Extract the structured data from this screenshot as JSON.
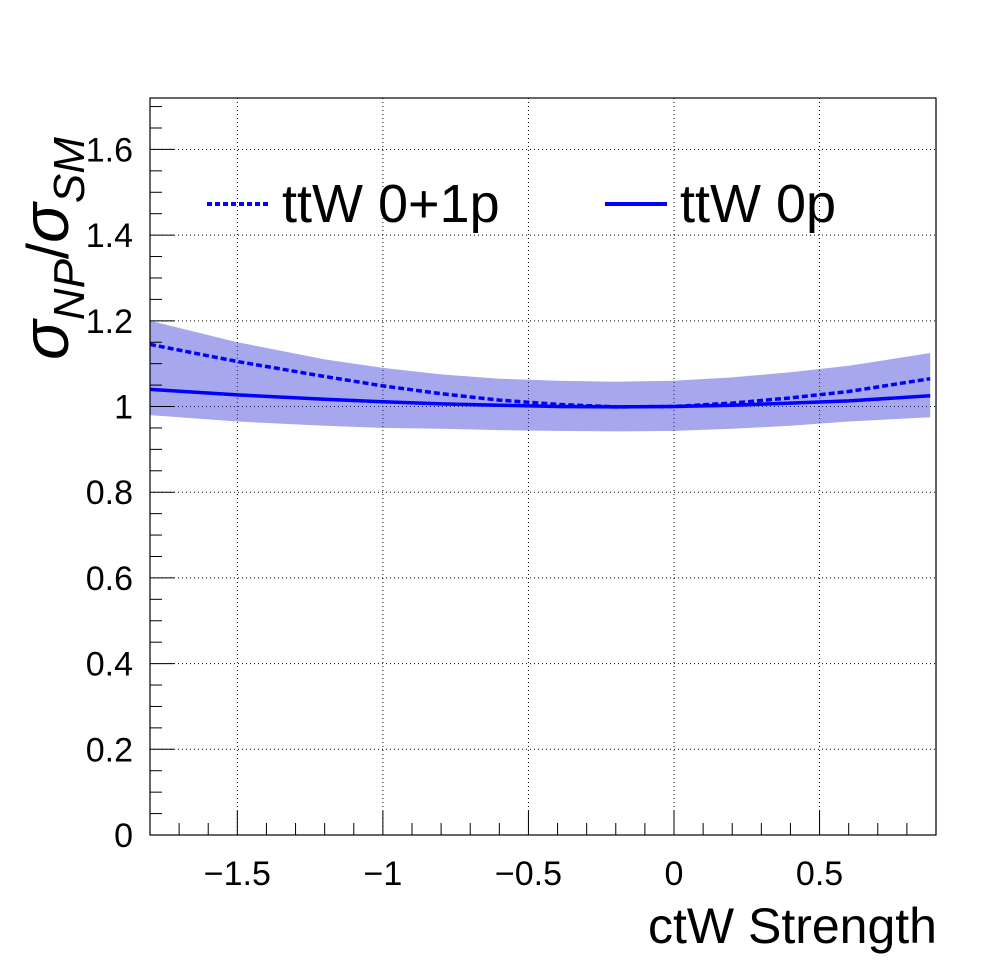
{
  "chart_data": {
    "type": "line",
    "title": "",
    "xlabel": "ctW Strength",
    "ylabel": {
      "base": "σ",
      "numerator_sub": "NP",
      "slash": "/",
      "denominator_base": "σ",
      "denominator_sub": "SM"
    },
    "xlim": [
      -1.8,
      0.9
    ],
    "ylim": [
      0,
      1.72
    ],
    "xticks": [
      {
        "value": -1.5,
        "label": "−1.5"
      },
      {
        "value": -1.0,
        "label": "−1"
      },
      {
        "value": -0.5,
        "label": "−0.5"
      },
      {
        "value": 0.0,
        "label": "0"
      },
      {
        "value": 0.5,
        "label": "0.5"
      }
    ],
    "yticks": [
      {
        "value": 0.0,
        "label": "0"
      },
      {
        "value": 0.2,
        "label": "0.2"
      },
      {
        "value": 0.4,
        "label": "0.4"
      },
      {
        "value": 0.6,
        "label": "0.6"
      },
      {
        "value": 0.8,
        "label": "0.8"
      },
      {
        "value": 1.0,
        "label": "1"
      },
      {
        "value": 1.2,
        "label": "1.2"
      },
      {
        "value": 1.4,
        "label": "1.4"
      },
      {
        "value": 1.6,
        "label": "1.6"
      }
    ],
    "grid": true,
    "legend_position": "top",
    "series": [
      {
        "name": "ttW 0+1p",
        "style": "dashed",
        "color": "#0000ff",
        "x": [
          -1.8,
          -1.5,
          -1.2,
          -1.0,
          -0.8,
          -0.6,
          -0.4,
          -0.2,
          0.0,
          0.2,
          0.4,
          0.6,
          0.88
        ],
        "y": [
          1.145,
          1.105,
          1.07,
          1.048,
          1.03,
          1.015,
          1.005,
          0.999,
          1.0,
          1.008,
          1.02,
          1.035,
          1.065
        ]
      },
      {
        "name": "ttW 0p",
        "style": "solid",
        "color": "#0000ff",
        "x": [
          -1.8,
          -1.5,
          -1.2,
          -1.0,
          -0.8,
          -0.6,
          -0.4,
          -0.2,
          0.0,
          0.2,
          0.4,
          0.6,
          0.88
        ],
        "y": [
          1.04,
          1.027,
          1.017,
          1.011,
          1.006,
          1.003,
          1.0,
          0.999,
          1.0,
          1.003,
          1.008,
          1.013,
          1.025
        ]
      }
    ],
    "band": {
      "color": "#3c3cd6",
      "opacity": 0.45,
      "x": [
        -1.8,
        -1.5,
        -1.2,
        -1.0,
        -0.8,
        -0.6,
        -0.4,
        -0.2,
        0.0,
        0.2,
        0.4,
        0.6,
        0.88
      ],
      "lower": [
        0.98,
        0.965,
        0.955,
        0.95,
        0.948,
        0.945,
        0.943,
        0.942,
        0.943,
        0.948,
        0.955,
        0.965,
        0.975
      ],
      "upper": [
        1.2,
        1.15,
        1.11,
        1.09,
        1.075,
        1.065,
        1.06,
        1.058,
        1.06,
        1.068,
        1.08,
        1.095,
        1.125
      ]
    }
  }
}
